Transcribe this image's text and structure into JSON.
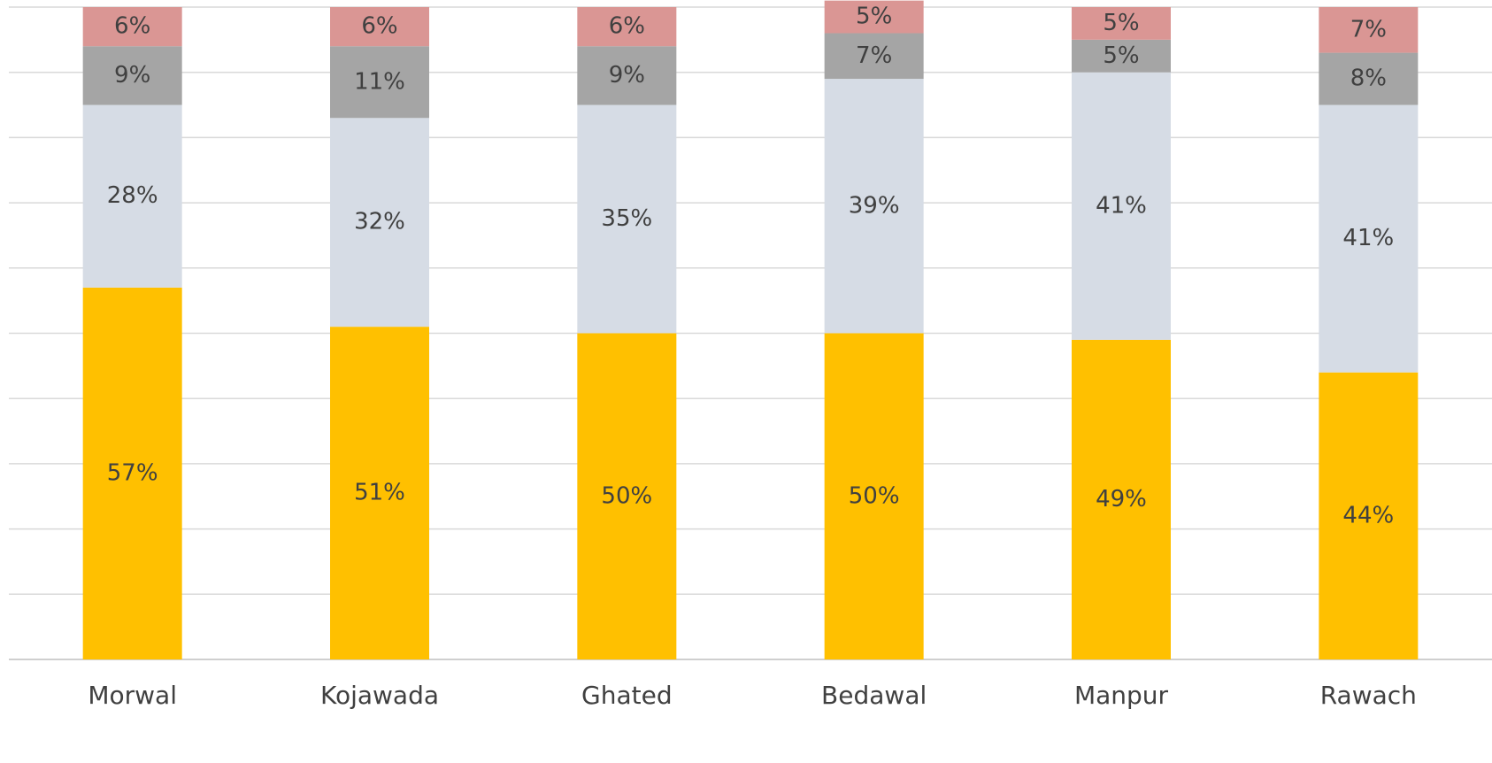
{
  "chart_data": {
    "type": "stacked_bar",
    "categories": [
      "Morwal",
      "Kojawada",
      "Ghated",
      "Bedawal",
      "Manpur",
      "Rawach"
    ],
    "series": [
      {
        "color": "#FFC000",
        "values": [
          57,
          51,
          50,
          50,
          49,
          44
        ],
        "value_labels": [
          "57%",
          "51%",
          "50%",
          "50%",
          "49%",
          "44%"
        ]
      },
      {
        "color": "#D6DCE5",
        "values": [
          28,
          32,
          35,
          39,
          41,
          41
        ],
        "value_labels": [
          "28%",
          "32%",
          "35%",
          "39%",
          "41%",
          "41%"
        ]
      },
      {
        "color": "#A5A5A5",
        "values": [
          9,
          11,
          9,
          7,
          5,
          8
        ],
        "value_labels": [
          "9%",
          "11%",
          "9%",
          "7%",
          "5%",
          "8%"
        ]
      },
      {
        "color": "#DA9694",
        "values": [
          6,
          6,
          6,
          5,
          5,
          7
        ],
        "value_labels": [
          "6%",
          "6%",
          "6%",
          "5%",
          "5%",
          "7%"
        ]
      }
    ],
    "ylim": [
      0,
      100
    ],
    "yticks": [
      0,
      10,
      20,
      30,
      40,
      50,
      60,
      70,
      80,
      90,
      100
    ],
    "grid": true
  }
}
